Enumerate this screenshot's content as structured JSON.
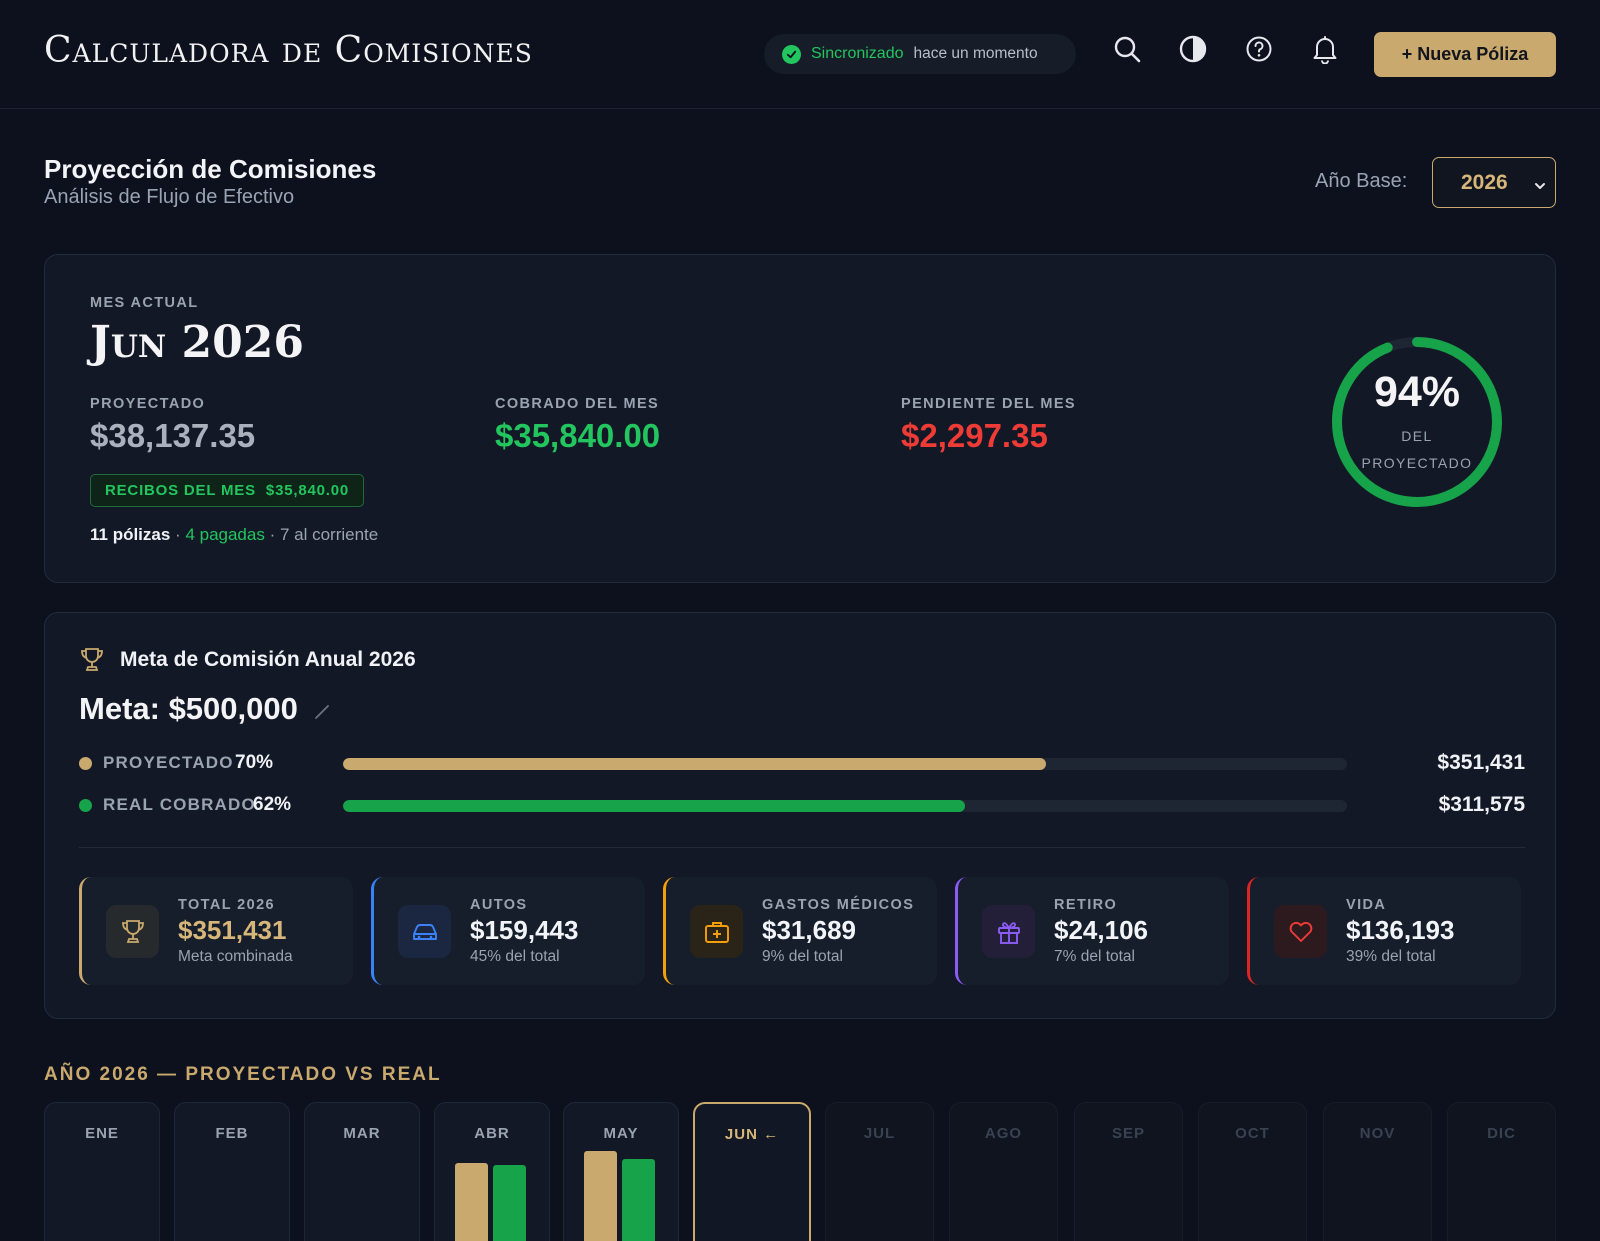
{
  "header": {
    "app_title": "Calculadora de Comisiones",
    "sync_status": "Sincronizado",
    "sync_time": "hace un momento",
    "new_policy_label": "+ Nueva Póliza",
    "icons": [
      "search-icon",
      "theme-contrast-icon",
      "help-icon",
      "bell-icon"
    ]
  },
  "page": {
    "title": "Proyección de Comisiones",
    "subtitle": "Análisis de Flujo de Efectivo",
    "year_label": "Año Base:",
    "year_value": "2026"
  },
  "current_month": {
    "label": "MES ACTUAL",
    "month": "Jun 2026",
    "projected_label": "PROYECTADO",
    "projected_value": "$38,137.35",
    "collected_label": "COBRADO DEL MES",
    "collected_value": "$35,840.00",
    "pending_label": "PENDIENTE DEL MES",
    "pending_value": "$2,297.35",
    "receipts_label": "RECIBOS DEL MES",
    "receipts_value": "$35,840.00",
    "policies_count": "11 pólizas",
    "policies_sep1": " · ",
    "policies_paid": "4 pagadas",
    "policies_sep2": " · ",
    "policies_current": "7 al corriente",
    "ring_percent_text": "94%",
    "ring_percent": 0.94,
    "ring_sub1": "DEL",
    "ring_sub2": "PROYECTADO"
  },
  "goal": {
    "heading": "Meta de Comisión Anual 2026",
    "value": "Meta: $500,000",
    "rows": [
      {
        "name": "PROYECTADO",
        "pct_text": "70%",
        "fraction": 0.7,
        "amount": "$351,431",
        "color": "#c9a96e"
      },
      {
        "name": "REAL COBRADO",
        "pct_text": "62%",
        "fraction": 0.62,
        "amount": "$311,575",
        "color": "#16a34a"
      }
    ],
    "categories": [
      {
        "label": "TOTAL 2026",
        "value": "$351,431",
        "sub": "Meta combinada",
        "icon": "trophy-icon",
        "color": "#c9a96e"
      },
      {
        "label": "AUTOS",
        "value": "$159,443",
        "sub": "45% del total",
        "icon": "car-icon",
        "color": "#3b82f6"
      },
      {
        "label": "GASTOS MÉDICOS",
        "value": "$31,689",
        "sub": "9% del total",
        "icon": "medical-kit-icon",
        "color": "#f59e0b"
      },
      {
        "label": "RETIRO",
        "value": "$24,106",
        "sub": "7% del total",
        "icon": "gift-icon",
        "color": "#8b5cf6"
      },
      {
        "label": "VIDA",
        "value": "$136,193",
        "sub": "39% del total",
        "icon": "heart-icon",
        "color": "#dc2626"
      }
    ]
  },
  "yearly": {
    "title": "AÑO 2026 — PROYECTADO VS REAL",
    "months": [
      {
        "label": "ENE",
        "state": "past"
      },
      {
        "label": "FEB",
        "state": "past"
      },
      {
        "label": "MAR",
        "state": "past"
      },
      {
        "label": "ABR",
        "state": "past"
      },
      {
        "label": "MAY",
        "state": "past"
      },
      {
        "label": "JUN ←",
        "state": "current"
      },
      {
        "label": "JUL",
        "state": "future"
      },
      {
        "label": "AGO",
        "state": "future"
      },
      {
        "label": "SEP",
        "state": "future"
      },
      {
        "label": "OCT",
        "state": "future"
      },
      {
        "label": "NOV",
        "state": "future"
      },
      {
        "label": "DIC",
        "state": "future"
      }
    ],
    "colors": {
      "projected": "#c9a96e",
      "real": "#16a34a"
    }
  }
}
